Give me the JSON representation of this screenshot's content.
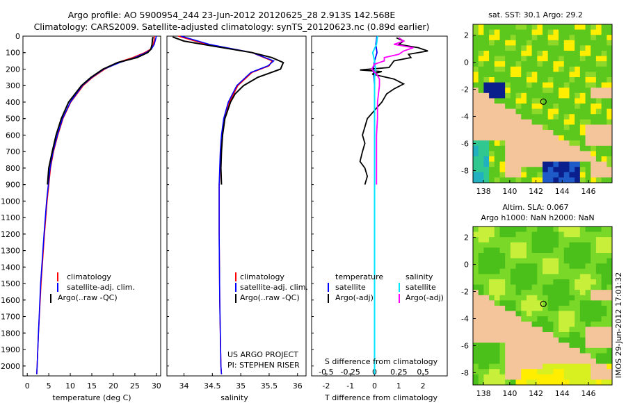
{
  "header": {
    "line1": "Argo profile: AO 5900954_244 23-Jun-2012 20120625_28 2.913S 142.568E",
    "line2": "Climatology: CARS2009. Satellite-adjusted climatology: synTS_20120623.nc (0.89d earlier)"
  },
  "colors": {
    "climatology": "#ff0000",
    "satellite": "#0000ff",
    "argo": "#000000",
    "sal_satellite": "#00e5ff",
    "sal_argo": "#ff00ff",
    "land": "#f4c49a"
  },
  "chart_data": [
    {
      "type": "line",
      "name": "temperature-profile",
      "xlabel": "temperature (deg C)",
      "ylabel": "",
      "xlim": [
        -1,
        31
      ],
      "ylim": [
        2060,
        0
      ],
      "xticks": [
        0,
        5,
        10,
        15,
        20,
        25,
        30
      ],
      "yticks": [
        0,
        100,
        200,
        300,
        400,
        500,
        600,
        700,
        800,
        900,
        1000,
        1100,
        1200,
        1300,
        1400,
        1500,
        1600,
        1700,
        1800,
        1900,
        2000
      ],
      "legend": [
        "climatology",
        "satellite-adj. clim.",
        "Argo(..raw -QC)"
      ],
      "series": [
        {
          "name": "climatology",
          "depth": [
            0,
            20,
            50,
            80,
            100,
            130,
            160,
            200,
            250,
            300,
            400,
            500,
            600,
            700,
            800,
            1000,
            1200,
            1500,
            1800,
            2000,
            2050
          ],
          "values": [
            29.5,
            29.5,
            29.3,
            28.6,
            27.3,
            24.5,
            21.0,
            18.0,
            15.2,
            13.0,
            10.1,
            8.3,
            7.1,
            6.1,
            5.4,
            4.6,
            4.0,
            3.2,
            2.6,
            2.3,
            2.2
          ]
        },
        {
          "name": "satellite-adj. clim.",
          "depth": [
            0,
            20,
            50,
            80,
            100,
            130,
            160,
            200,
            250,
            300,
            400,
            500,
            600,
            700,
            800,
            1000,
            1200,
            1500,
            1800,
            2000,
            2050
          ],
          "values": [
            30.0,
            29.8,
            29.5,
            28.8,
            27.6,
            25.0,
            21.5,
            17.8,
            15.0,
            12.8,
            10.0,
            8.2,
            7.0,
            6.0,
            5.3,
            4.5,
            3.9,
            3.1,
            2.6,
            2.3,
            2.2
          ]
        },
        {
          "name": "Argo(..raw -QC)",
          "depth": [
            5,
            20,
            50,
            80,
            100,
            130,
            160,
            200,
            250,
            300,
            400,
            500,
            600,
            700,
            800,
            900
          ],
          "values": [
            29.2,
            29.1,
            29.0,
            28.7,
            28.0,
            25.5,
            21.0,
            17.6,
            14.8,
            12.6,
            9.6,
            7.9,
            6.7,
            5.8,
            5.0,
            4.7
          ]
        }
      ]
    },
    {
      "type": "line",
      "name": "salinity-profile",
      "xlabel": "salinity",
      "xlim": [
        33.7,
        36.15
      ],
      "ylim": [
        2060,
        0
      ],
      "xticks": [
        34,
        34.5,
        35,
        35.5,
        36
      ],
      "legend": [
        "climatology",
        "satellite-adj. clim.",
        "Argo(..raw -QC)"
      ],
      "series": [
        {
          "name": "climatology",
          "depth": [
            0,
            50,
            100,
            150,
            180,
            220,
            300,
            400,
            500,
            600,
            700,
            900,
            1200,
            1600,
            2000,
            2050
          ],
          "values": [
            33.9,
            34.4,
            35.2,
            35.55,
            35.5,
            35.2,
            34.95,
            34.8,
            34.72,
            34.68,
            34.65,
            34.62,
            34.62,
            34.63,
            34.65,
            34.66
          ]
        },
        {
          "name": "satellite-adj. clim.",
          "depth": [
            0,
            50,
            100,
            150,
            180,
            220,
            300,
            400,
            500,
            600,
            700,
            900,
            1200,
            1600,
            2000,
            2050
          ],
          "values": [
            33.95,
            34.45,
            35.2,
            35.58,
            35.48,
            35.18,
            34.93,
            34.78,
            34.7,
            34.66,
            34.64,
            34.62,
            34.62,
            34.63,
            34.65,
            34.66
          ]
        },
        {
          "name": "Argo(..raw -QC)",
          "depth": [
            5,
            30,
            60,
            100,
            130,
            160,
            200,
            250,
            300,
            350,
            400,
            500,
            600,
            700,
            800,
            900
          ],
          "values": [
            33.8,
            34.0,
            34.5,
            35.2,
            35.55,
            35.75,
            35.7,
            35.3,
            35.05,
            34.9,
            34.82,
            34.72,
            34.68,
            34.66,
            34.65,
            34.66
          ]
        }
      ]
    },
    {
      "type": "line",
      "name": "difference-profile",
      "xlabel_bottom": "T difference from climatology",
      "xlabel_top": "S difference from climatology",
      "xlim": [
        -2.6,
        3.0
      ],
      "ylim": [
        2060,
        0
      ],
      "xticks_bottom": [
        -2,
        -1,
        0,
        1,
        2
      ],
      "xticks_top": [
        -0.5,
        -0.25,
        0,
        0.25,
        0.5
      ],
      "legend_titles": [
        "temperature",
        "salinity"
      ],
      "legend": [
        "satellite",
        "Argo(-adj)",
        "satellite",
        "Argo(-adj)"
      ],
      "series": [
        {
          "name": "temperature satellite",
          "depth": [
            0,
            50,
            100,
            150,
            200,
            300,
            500,
            1000,
            1500,
            2050
          ],
          "values": [
            0.1,
            0.05,
            0.1,
            0.0,
            -0.05,
            0.0,
            0.0,
            0.0,
            0.0,
            0.0
          ]
        },
        {
          "name": "temperature Argo(-adj)",
          "depth": [
            10,
            30,
            50,
            70,
            90,
            110,
            130,
            150,
            170,
            190,
            205,
            215,
            230,
            260,
            290,
            320,
            350,
            400,
            450,
            500,
            550,
            600,
            650,
            700,
            760,
            800,
            850,
            900
          ],
          "values": [
            0.9,
            1.2,
            1.0,
            1.8,
            2.2,
            1.4,
            1.5,
            0.8,
            0.7,
            0.6,
            -0.6,
            0.3,
            -0.1,
            0.8,
            1.2,
            0.8,
            0.5,
            0.3,
            0.0,
            -0.3,
            -0.4,
            -0.5,
            -0.4,
            -0.5,
            -0.6,
            -0.4,
            -0.3,
            -0.4
          ]
        },
        {
          "name": "salinity satellite",
          "depth": [
            0,
            50,
            100,
            150,
            200,
            250,
            300,
            400,
            500,
            700,
            1000,
            1500,
            2050
          ],
          "values": [
            0.03,
            0.02,
            -0.02,
            0.0,
            0.01,
            0.0,
            0.0,
            0.0,
            0.0,
            0.0,
            0.0,
            0.0,
            0.0
          ]
        },
        {
          "name": "salinity Argo(-adj)",
          "depth": [
            10,
            30,
            50,
            70,
            90,
            110,
            130,
            150,
            170,
            200,
            230,
            260,
            300,
            400,
            500,
            600,
            700,
            800,
            900
          ],
          "values": [
            0.25,
            0.3,
            0.2,
            0.4,
            0.3,
            0.25,
            0.1,
            0.1,
            0.0,
            -0.03,
            0.02,
            0.05,
            0.05,
            0.03,
            0.03,
            0.02,
            0.02,
            0.02,
            0.02
          ]
        }
      ],
      "credit": [
        "US ARGO PROJECT",
        "PI: STEPHEN RISER"
      ]
    },
    {
      "type": "heatmap",
      "name": "sst-map",
      "title": "sat. SST: 30.1  Argo: 29.2",
      "xticks": [
        138,
        140,
        142,
        144,
        146
      ],
      "yticks": [
        2,
        0,
        -2,
        -4,
        -6,
        -8
      ],
      "xlim": [
        137.2,
        147.8
      ],
      "ylim": [
        -8.9,
        2.8
      ],
      "marker": {
        "lon": 142.568,
        "lat": -2.913
      }
    },
    {
      "type": "heatmap",
      "name": "sla-map",
      "title_line1": "Altim. SLA: 0.067",
      "title_line2": "Argo h1000: NaN h2000: NaN",
      "xticks": [
        138,
        140,
        142,
        144,
        146
      ],
      "yticks": [
        2,
        0,
        -2,
        -4,
        -6,
        -8
      ],
      "xlim": [
        137.2,
        147.8
      ],
      "ylim": [
        -8.9,
        2.8
      ],
      "marker": {
        "lon": 142.568,
        "lat": -2.913
      }
    }
  ],
  "timestamp": "IMOS 29-Jun-2012 17:01:32"
}
